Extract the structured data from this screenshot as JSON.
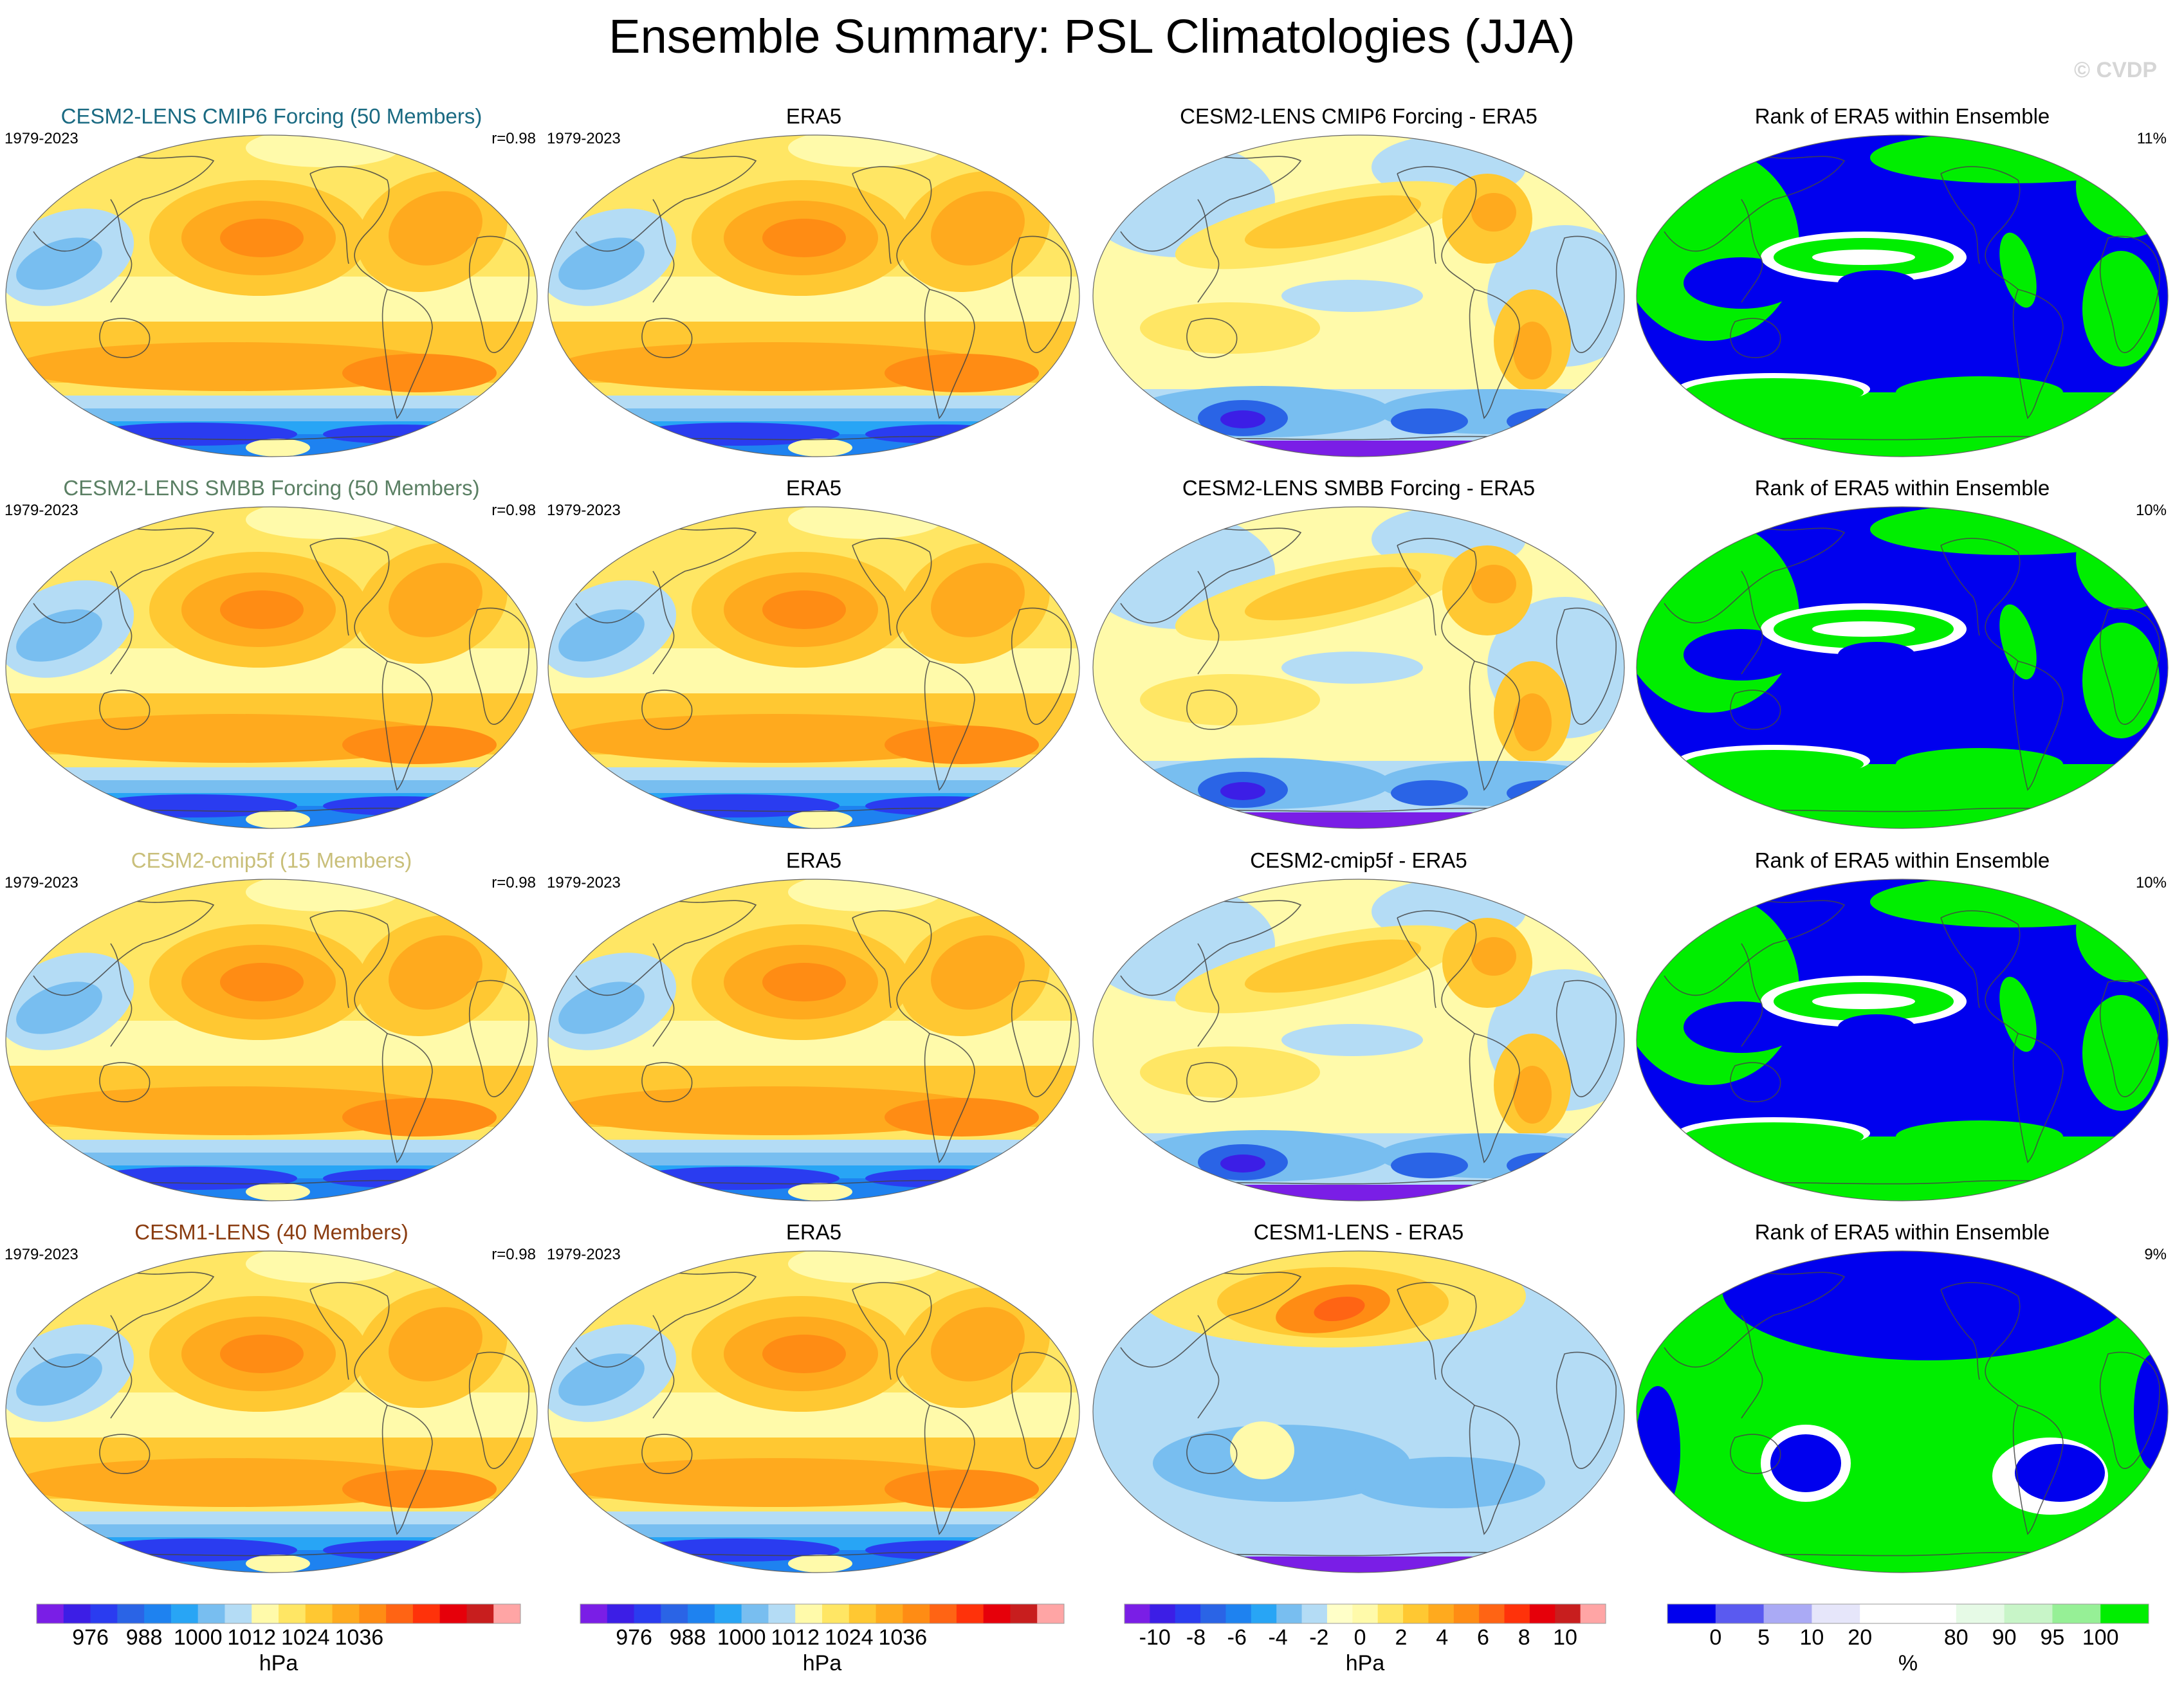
{
  "figure": {
    "title": "Ensemble Summary: PSL Climatologies (JJA)",
    "watermark": "© CVDP"
  },
  "colors": {
    "title_cesm2_cmip6": "#1a6a82",
    "title_cesm2_smbb": "#5a7f63",
    "title_cesm2_cmip5f": "#c9bf7a",
    "title_cesm1": "#8a3c10",
    "rank_below": "#0000ee",
    "rank_mid": "#ffffff",
    "rank_above": "#00ee00",
    "land_outline": "#444444"
  },
  "colorbars": {
    "psl": {
      "colors": [
        "#7a1ee6",
        "#3c1ee6",
        "#2a3cf0",
        "#2a64e6",
        "#1e82f0",
        "#28a5f5",
        "#78bef0",
        "#b4dcf5",
        "#fffaaa",
        "#ffe664",
        "#ffc832",
        "#ffaa1e",
        "#ff8c14",
        "#ff6414",
        "#ff320a",
        "#e6000a",
        "#c81e1e",
        "#ffa5a5"
      ],
      "ticks": [
        "976",
        "988",
        "1000",
        "1012",
        "1024",
        "1036"
      ],
      "unit": "hPa"
    },
    "diff": {
      "colors": [
        "#7a1ee6",
        "#3c1ee6",
        "#2a3cf0",
        "#2a64e6",
        "#1e82f0",
        "#28a5f5",
        "#78bef0",
        "#b4dcf5",
        "#ffffc8",
        "#fffaaa",
        "#ffe664",
        "#ffc832",
        "#ffaa1e",
        "#ff8c14",
        "#ff6414",
        "#ff320a",
        "#e6000a",
        "#c81e1e",
        "#ffa5a5"
      ],
      "ticks": [
        "-10",
        "-8",
        "-6",
        "-4",
        "-2",
        "0",
        "2",
        "4",
        "6",
        "8",
        "10"
      ],
      "unit": "hPa"
    },
    "rank": {
      "colors": [
        "#0000ee",
        "#5a5af0",
        "#aaaaf5",
        "#e6e6fa",
        "#ffffff",
        "#ffffff",
        "#e6fae6",
        "#c8f5c8",
        "#96f096",
        "#00ee00"
      ],
      "ticks": [
        "0",
        "5",
        "10",
        "20",
        "80",
        "90",
        "95",
        "100"
      ],
      "unit": "%"
    }
  },
  "chart_data": [
    {
      "type": "heatmap",
      "row": "CESM2-LENS CMIP6 Forcing",
      "panels": [
        {
          "title": "CESM2-LENS CMIP6 Forcing (50 Members)",
          "left_label": "1979-2023",
          "right_label": "r=0.98",
          "field": "psl"
        },
        {
          "title": "ERA5",
          "left_label": "1979-2023",
          "right_label": "",
          "field": "psl"
        },
        {
          "title": "CESM2-LENS CMIP6 Forcing - ERA5",
          "left_label": "",
          "right_label": "",
          "field": "diff"
        },
        {
          "title": "Rank of ERA5 within Ensemble",
          "left_label": "",
          "right_label": "11%",
          "field": "rank"
        }
      ]
    },
    {
      "type": "heatmap",
      "row": "CESM2-LENS SMBB Forcing",
      "panels": [
        {
          "title": "CESM2-LENS SMBB Forcing (50 Members)",
          "left_label": "1979-2023",
          "right_label": "r=0.98",
          "field": "psl"
        },
        {
          "title": "ERA5",
          "left_label": "1979-2023",
          "right_label": "",
          "field": "psl"
        },
        {
          "title": "CESM2-LENS SMBB Forcing - ERA5",
          "left_label": "",
          "right_label": "",
          "field": "diff"
        },
        {
          "title": "Rank of ERA5 within Ensemble",
          "left_label": "",
          "right_label": "10%",
          "field": "rank"
        }
      ]
    },
    {
      "type": "heatmap",
      "row": "CESM2-cmip5f",
      "panels": [
        {
          "title": "CESM2-cmip5f (15 Members)",
          "left_label": "1979-2023",
          "right_label": "r=0.98",
          "field": "psl"
        },
        {
          "title": "ERA5",
          "left_label": "1979-2023",
          "right_label": "",
          "field": "psl"
        },
        {
          "title": "CESM2-cmip5f - ERA5",
          "left_label": "",
          "right_label": "",
          "field": "diff"
        },
        {
          "title": "Rank of ERA5 within Ensemble",
          "left_label": "",
          "right_label": "10%",
          "field": "rank"
        }
      ]
    },
    {
      "type": "heatmap",
      "row": "CESM1-LENS",
      "panels": [
        {
          "title": "CESM1-LENS (40 Members)",
          "left_label": "1979-2023",
          "right_label": "r=0.98",
          "field": "psl"
        },
        {
          "title": "ERA5",
          "left_label": "1979-2023",
          "right_label": "",
          "field": "psl"
        },
        {
          "title": "CESM1-LENS - ERA5",
          "left_label": "",
          "right_label": "",
          "field": "diff"
        },
        {
          "title": "Rank of ERA5 within Ensemble",
          "left_label": "",
          "right_label": "9%",
          "field": "rank",
          "variant": "inverted"
        }
      ]
    }
  ]
}
